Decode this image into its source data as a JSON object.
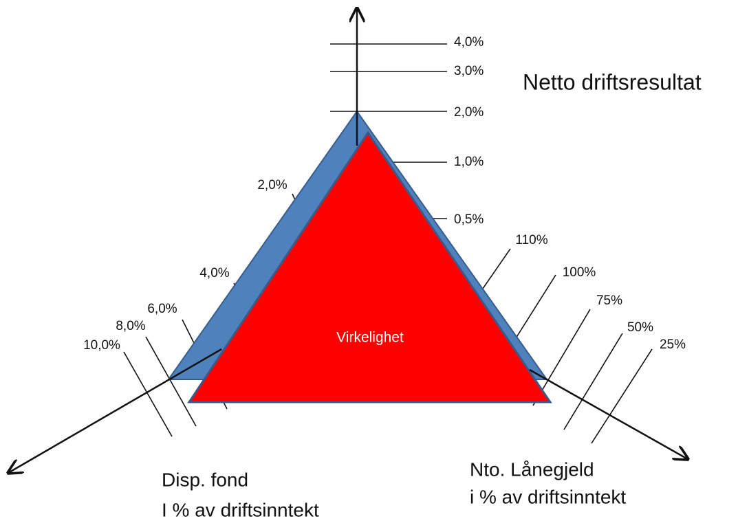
{
  "axes": [
    {
      "label": "Netto driftsresultat",
      "ticks": [
        "4,0%",
        "3,0%",
        "2,0%",
        "1,0%",
        "0,5%"
      ]
    },
    {
      "label_lines": [
        "Disp. fond",
        "I % av driftsinntekt"
      ],
      "ticks": [
        "2,0%",
        "4,0%",
        "6,0%",
        "8,0%",
        "10,0%"
      ]
    },
    {
      "label_lines": [
        "Nto. Lånegjeld",
        "i % av driftsinntekt"
      ],
      "ticks": [
        "110%",
        "100%",
        "75%",
        "50%",
        "25%"
      ]
    }
  ],
  "triangle_label": "Virkelighet"
}
